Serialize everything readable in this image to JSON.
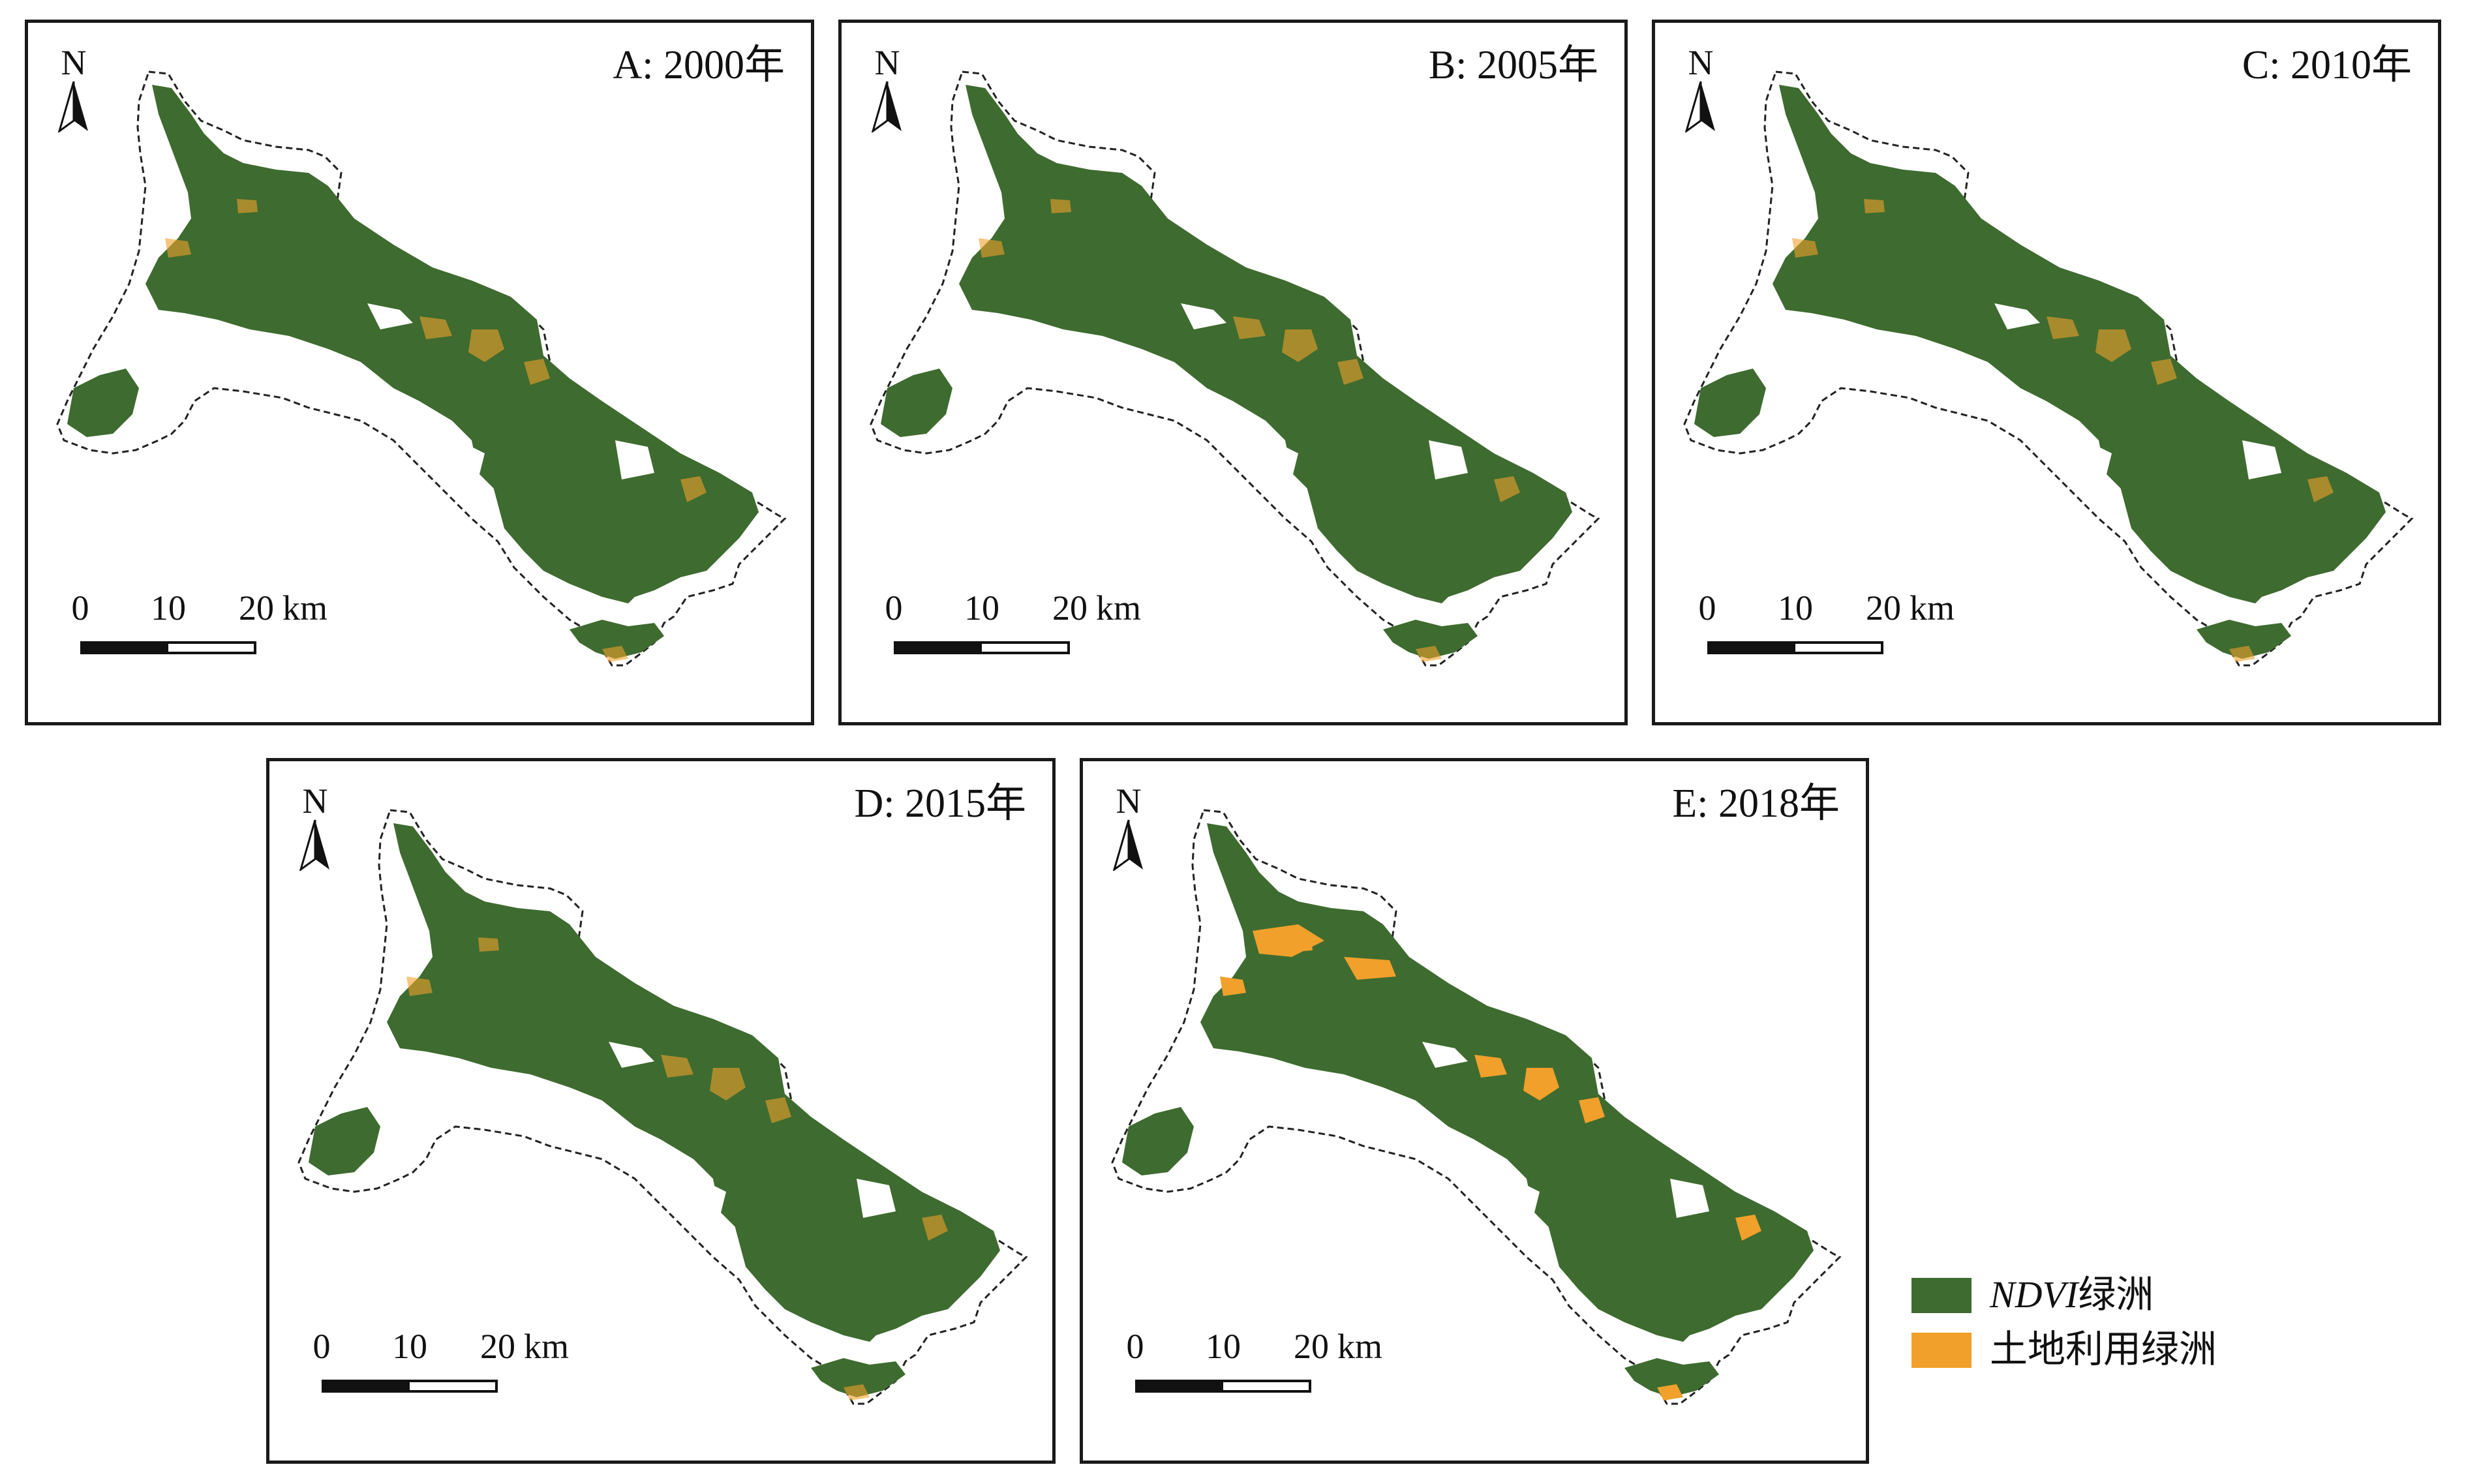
{
  "panels": [
    {
      "id": "A",
      "title": "A: 2000年"
    },
    {
      "id": "B",
      "title": "B: 2005年"
    },
    {
      "id": "C",
      "title": "C: 2010年"
    },
    {
      "id": "D",
      "title": "D: 2015年"
    },
    {
      "id": "E",
      "title": "E: 2018年"
    }
  ],
  "north_arrow": {
    "label": "N"
  },
  "scale_bar": {
    "ticks": [
      "0",
      "10",
      "20"
    ],
    "unit": "km"
  },
  "legend": {
    "ndvi": {
      "label_italic": "NDVI",
      "label_rest": "绿洲",
      "color": "#3e6b2f"
    },
    "landuse": {
      "label": "土地利用绿洲",
      "color": "#f0a02b"
    }
  },
  "colors": {
    "oasis_green": "#3e6b2f",
    "landuse_orange": "#f0a02b",
    "boundary": "#222222"
  }
}
